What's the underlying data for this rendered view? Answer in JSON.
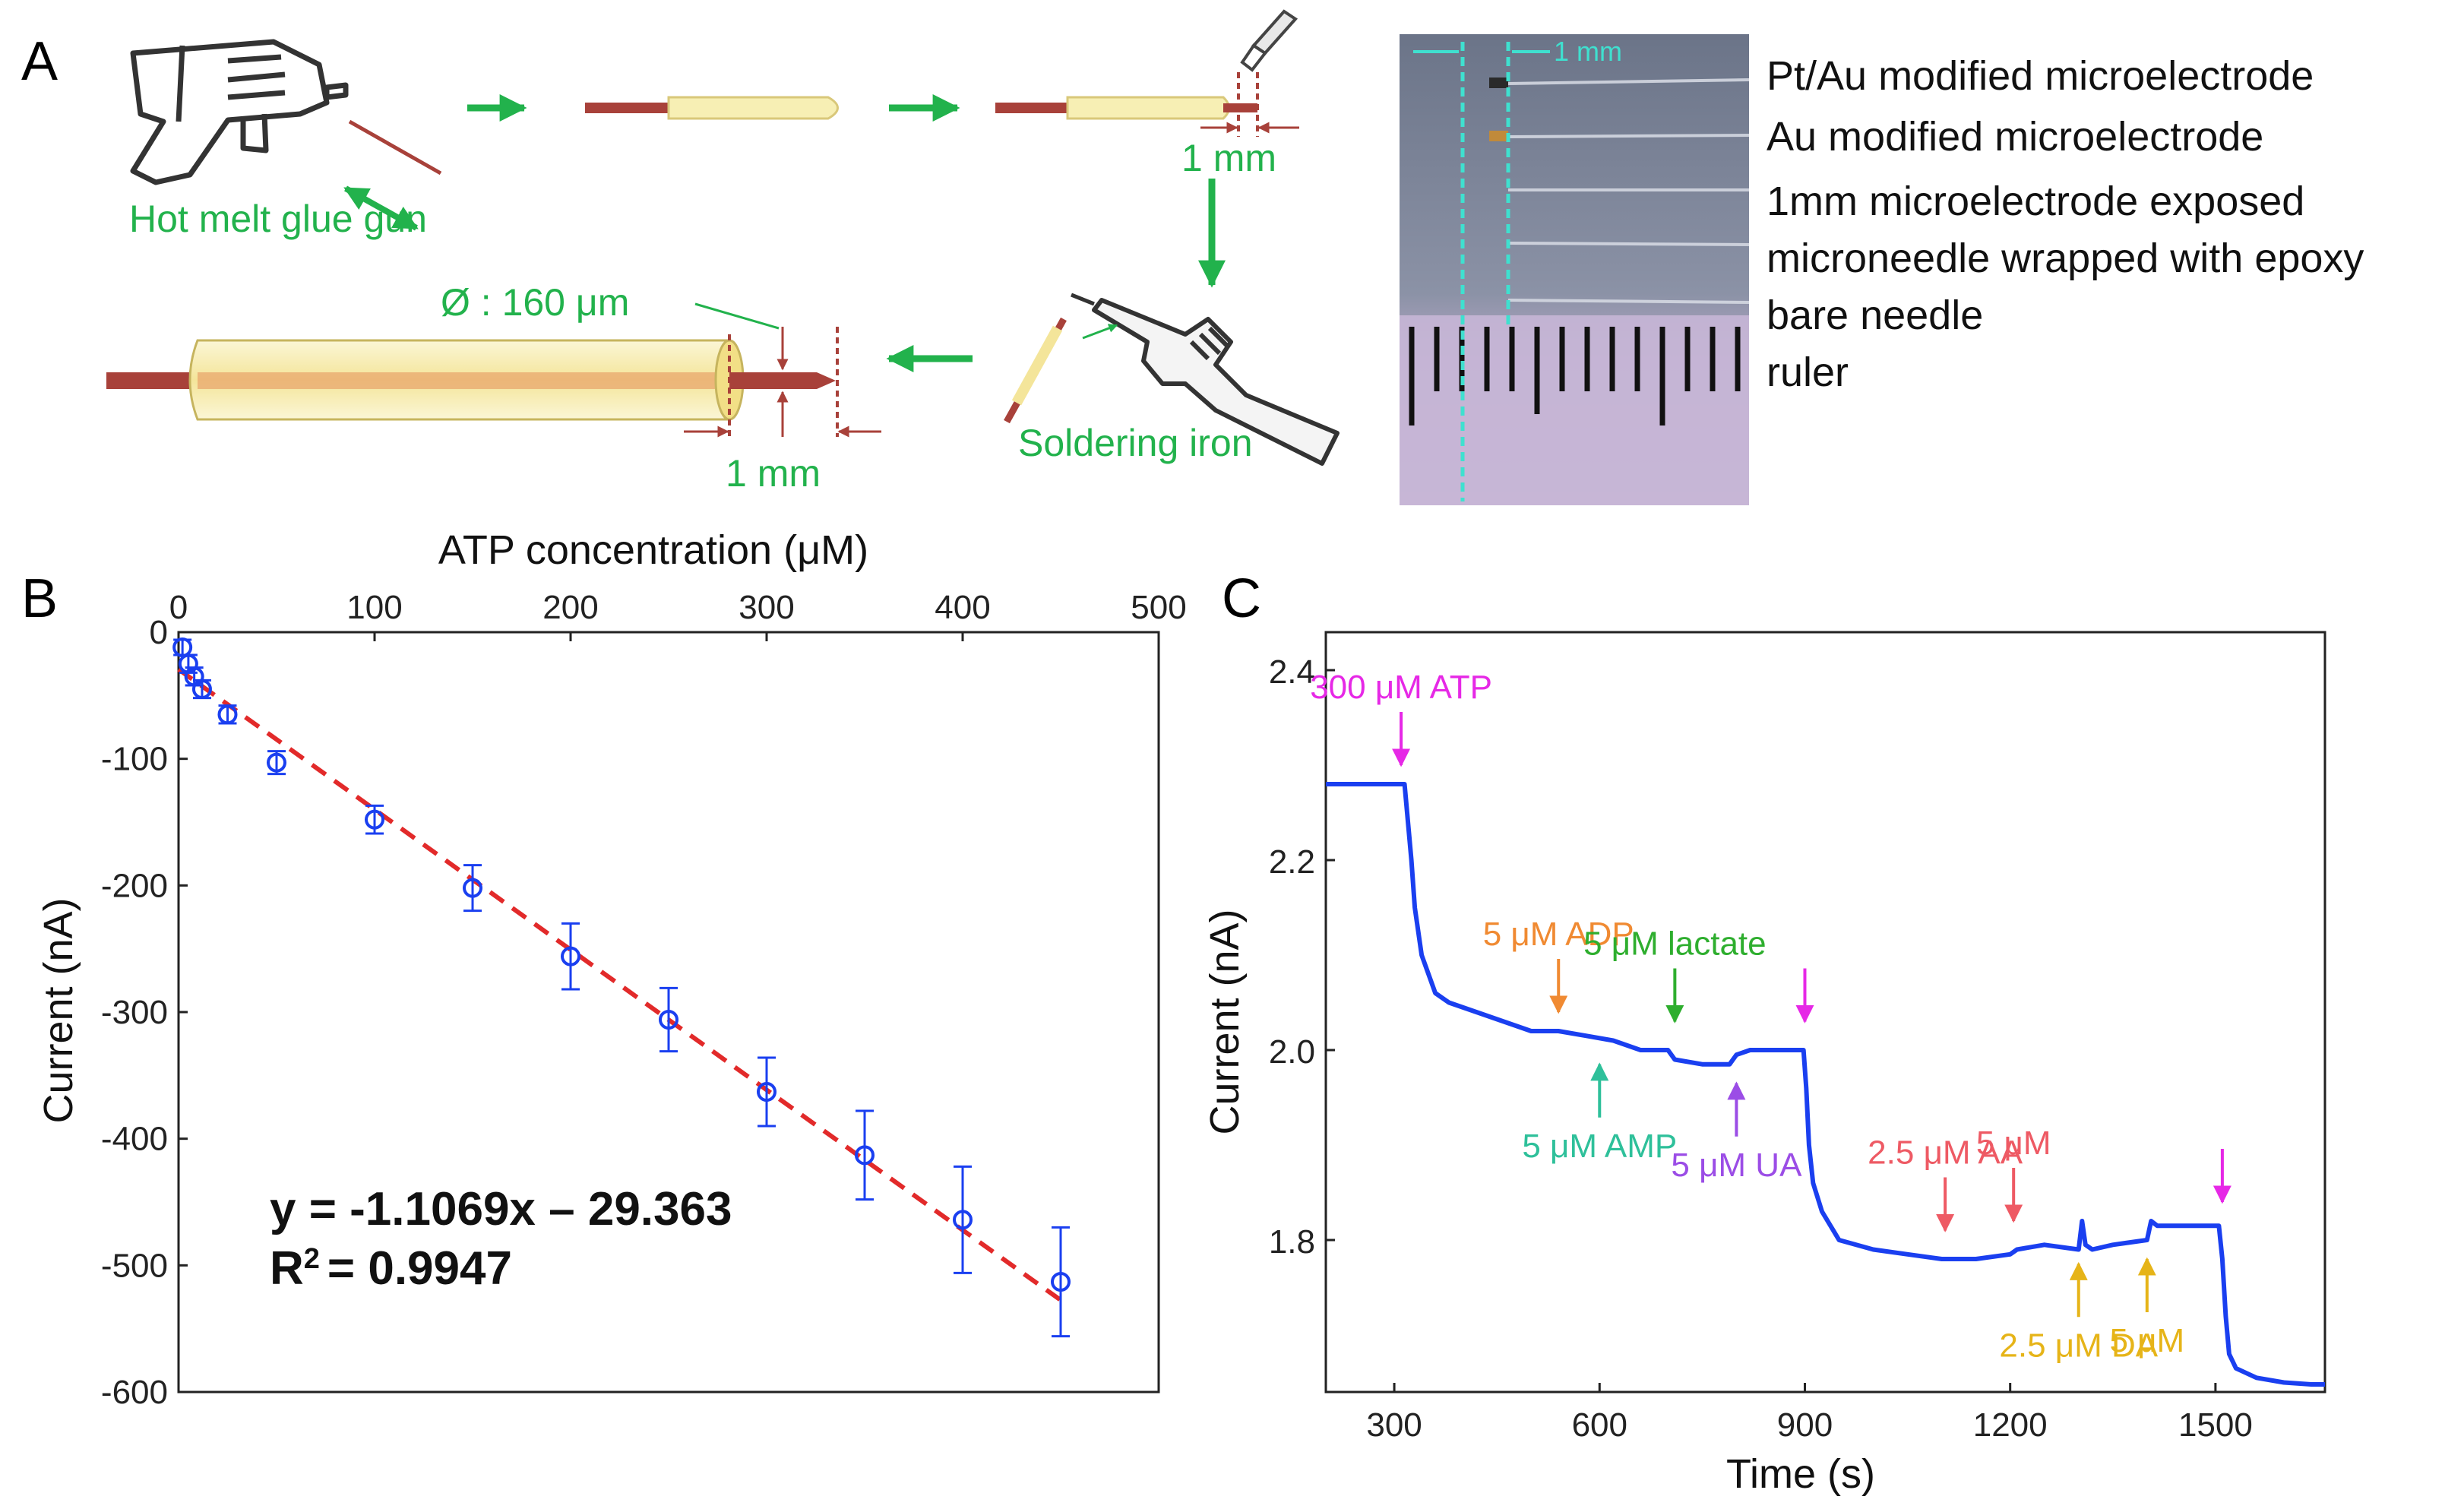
{
  "panel_a": {
    "label": "A",
    "glue_gun_label": "Hot melt glue gun",
    "mm_label_top": "1 mm",
    "mm_label_bottom": "1 mm",
    "diameter_label": "Ø : 160 μm",
    "soldering_label": "Soldering iron",
    "photo_scale_label": "1 mm",
    "legend": [
      "Pt/Au modified microelectrode",
      "Au modified microelectrode",
      "1mm microelectrode exposed",
      "microneedle wrapped with epoxy",
      "bare needle",
      "ruler"
    ]
  },
  "colors": {
    "green": "#22b24c",
    "rod": "#a8413a",
    "tube": "#f7efb4",
    "blue": "#1a3ff0",
    "red": "#e22a2a",
    "magenta": "#e628e6",
    "orange": "#f08a32",
    "lime": "#2eae2e",
    "teal": "#2ec09a",
    "purple": "#9b4de6",
    "pink": "#ee5a64",
    "gold": "#e6b418"
  },
  "chart_data": [
    {
      "panel": "B",
      "type": "scatter",
      "title": "",
      "xlabel": "ATP concentration (μM)",
      "ylabel": "Current (nA)",
      "xlim": [
        0,
        500
      ],
      "ylim": [
        -600,
        0
      ],
      "xticks": [
        0,
        100,
        200,
        300,
        400,
        500
      ],
      "yticks": [
        0,
        -100,
        -200,
        -300,
        -400,
        -500,
        -600
      ],
      "x_axis_position": "top",
      "grid": false,
      "points": [
        {
          "x": 2,
          "y": -12,
          "err": 6
        },
        {
          "x": 5,
          "y": -25,
          "err": 7
        },
        {
          "x": 8,
          "y": -35,
          "err": 7
        },
        {
          "x": 12,
          "y": -45,
          "err": 7
        },
        {
          "x": 25,
          "y": -65,
          "err": 7
        },
        {
          "x": 50,
          "y": -103,
          "err": 9
        },
        {
          "x": 100,
          "y": -148,
          "err": 11
        },
        {
          "x": 150,
          "y": -202,
          "err": 18
        },
        {
          "x": 200,
          "y": -256,
          "err": 26
        },
        {
          "x": 250,
          "y": -306,
          "err": 25
        },
        {
          "x": 300,
          "y": -363,
          "err": 27
        },
        {
          "x": 350,
          "y": -413,
          "err": 35
        },
        {
          "x": 400,
          "y": -464,
          "err": 42
        },
        {
          "x": 450,
          "y": -513,
          "err": 43
        }
      ],
      "fit": {
        "slope": -1.1069,
        "intercept": -29.363,
        "x_range": [
          0,
          450
        ]
      },
      "equation": "y = -1.1069x – 29.363",
      "r2_label": "R",
      "r2_sup": "2",
      "r2_value": "= 0.9947"
    },
    {
      "panel": "C",
      "type": "line",
      "title": "",
      "xlabel": "Time (s)",
      "ylabel": "Current (nA)",
      "xlim": [
        200,
        1660
      ],
      "ylim": [
        1.64,
        2.44
      ],
      "xticks": [
        300,
        600,
        900,
        1200,
        1500
      ],
      "yticks": [
        1.8,
        2.0,
        2.2,
        2.4
      ],
      "ytick_labels": [
        "1.8",
        "2.0",
        "2.2",
        "2.4"
      ],
      "grid": false,
      "series": [
        {
          "name": "current",
          "x": [
            200,
            260,
            315,
            320,
            325,
            330,
            340,
            360,
            380,
            420,
            460,
            500,
            540,
            580,
            620,
            660,
            700,
            710,
            750,
            790,
            800,
            820,
            850,
            880,
            898,
            902,
            906,
            912,
            925,
            950,
            1000,
            1050,
            1100,
            1150,
            1200,
            1210,
            1250,
            1300,
            1305,
            1310,
            1320,
            1350,
            1400,
            1406,
            1415,
            1430,
            1480,
            1505,
            1510,
            1515,
            1520,
            1530,
            1560,
            1600,
            1640,
            1660
          ],
          "y": [
            2.28,
            2.28,
            2.28,
            2.24,
            2.2,
            2.15,
            2.1,
            2.06,
            2.05,
            2.04,
            2.03,
            2.02,
            2.02,
            2.015,
            2.01,
            2.0,
            2.0,
            1.99,
            1.985,
            1.985,
            1.995,
            2.0,
            2.0,
            2.0,
            2.0,
            1.96,
            1.9,
            1.86,
            1.83,
            1.8,
            1.79,
            1.785,
            1.78,
            1.78,
            1.785,
            1.79,
            1.795,
            1.79,
            1.82,
            1.795,
            1.79,
            1.795,
            1.8,
            1.82,
            1.815,
            1.815,
            1.815,
            1.815,
            1.78,
            1.72,
            1.68,
            1.665,
            1.655,
            1.65,
            1.648,
            1.648
          ]
        }
      ],
      "annotations": [
        {
          "label": "300 μM ATP",
          "x": 310,
          "y": 2.3,
          "direction": "down",
          "color": "magenta"
        },
        {
          "label": "5 μM ADP",
          "x": 540,
          "y": 2.04,
          "direction": "down",
          "color": "orange"
        },
        {
          "label": "5 μM lactate",
          "x": 710,
          "y": 2.03,
          "direction": "down",
          "color": "lime"
        },
        {
          "label": "",
          "x": 900,
          "y": 2.03,
          "direction": "down",
          "color": "magenta"
        },
        {
          "label": "5 μM AMP",
          "x": 600,
          "y": 1.985,
          "direction": "up",
          "color": "teal"
        },
        {
          "label": "5 μM UA",
          "x": 800,
          "y": 1.965,
          "direction": "up",
          "color": "purple"
        },
        {
          "label": "2.5 μM AA",
          "x": 1105,
          "y": 1.81,
          "direction": "down",
          "color": "pink"
        },
        {
          "label": "5 μM",
          "x": 1205,
          "y": 1.82,
          "direction": "down",
          "color": "pink"
        },
        {
          "label": "2.5 μM DA",
          "x": 1300,
          "y": 1.775,
          "direction": "up",
          "color": "gold"
        },
        {
          "label": "5 μM",
          "x": 1400,
          "y": 1.78,
          "direction": "up",
          "color": "gold"
        },
        {
          "label": "",
          "x": 1510,
          "y": 1.84,
          "direction": "down",
          "color": "magenta"
        }
      ]
    }
  ]
}
